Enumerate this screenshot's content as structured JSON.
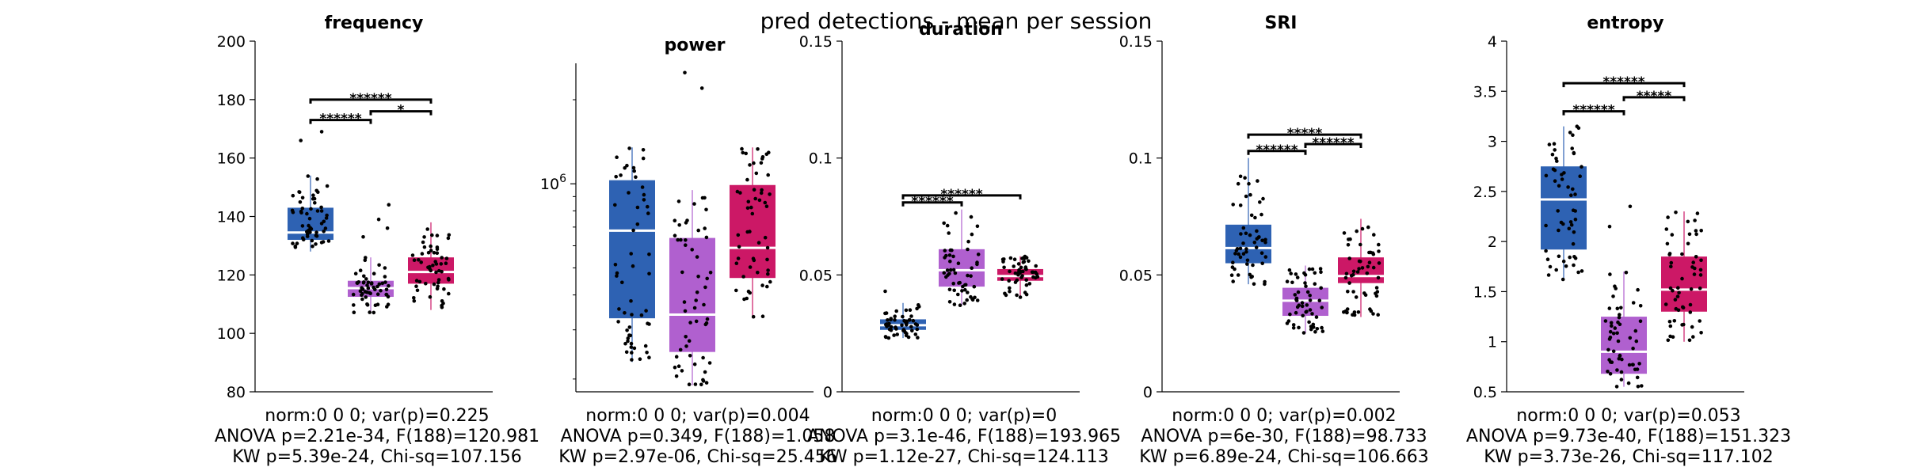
{
  "figure": {
    "title": "pred detections - mean per session",
    "colors": {
      "group1": "#2e62b3",
      "group2": "#b060cf",
      "group3": "#cc1866",
      "median": "#ffffff",
      "dot": "#000000"
    }
  },
  "chart_data": [
    {
      "type": "boxplot",
      "title": "frequency",
      "scale": "linear",
      "ylim": [
        80,
        200
      ],
      "yticks": [
        80,
        100,
        120,
        140,
        160,
        180,
        200
      ],
      "ytick_labels": [
        "80",
        "100",
        "120",
        "140",
        "160",
        "180",
        "200"
      ],
      "groups": [
        {
          "q1": 132,
          "median": 134.5,
          "q3": 143,
          "whisker_low": 128,
          "whisker_high": 154,
          "n": 55,
          "extra": [
            166,
            169
          ]
        },
        {
          "q1": 112.5,
          "median": 115.5,
          "q3": 118,
          "whisker_low": 107,
          "whisker_high": 126,
          "n": 55,
          "extra": [
            133,
            136,
            139,
            144
          ]
        },
        {
          "q1": 117,
          "median": 121,
          "q3": 126,
          "whisker_low": 108,
          "whisker_high": 138,
          "n": 55,
          "extra": []
        }
      ],
      "significance": [
        {
          "from": 0,
          "to": 1,
          "label": "******",
          "y": 173
        },
        {
          "from": 0,
          "to": 2,
          "label": "******",
          "y": 180
        },
        {
          "from": 1,
          "to": 2,
          "label": "*",
          "y": 176
        }
      ],
      "stats": [
        "norm:0  0  0; var(p)=0.225",
        "ANOVA p=2.21e-34, F(188)=120.981",
        "KW p=5.39e-24, Chi-sq=107.156"
      ]
    },
    {
      "type": "boxplot",
      "title": "power",
      "scale": "log",
      "ylim": [
        180000.0,
        2700000.0
      ],
      "yticks": [
        1000000
      ],
      "ytick_labels": [
        "10^6"
      ],
      "groups": [
        {
          "q1": 330000.0,
          "median": 680000.0,
          "q3": 1030000.0,
          "whisker_low": 230000.0,
          "whisker_high": 1350000.0,
          "n": 55,
          "extra": []
        },
        {
          "q1": 250000.0,
          "median": 340000.0,
          "q3": 640000.0,
          "whisker_low": 190000.0,
          "whisker_high": 950000.0,
          "n": 55,
          "extra": [
            2200000.0,
            2500000.0
          ]
        },
        {
          "q1": 460000.0,
          "median": 590000.0,
          "q3": 990000.0,
          "whisker_low": 330000.0,
          "whisker_high": 1350000.0,
          "n": 55,
          "extra": []
        }
      ],
      "significance": [],
      "stats": [
        "norm:0  0  0; var(p)=0.004",
        "ANOVA p=0.349, F(188)=1.058",
        "KW p=2.97e-06, Chi-sq=25.456"
      ]
    },
    {
      "type": "boxplot",
      "title": "duration",
      "scale": "linear",
      "ylim": [
        0,
        0.15
      ],
      "yticks": [
        0,
        0.05,
        0.1,
        0.15
      ],
      "ytick_labels": [
        "0",
        "0.05",
        "0.1",
        "0.15"
      ],
      "groups": [
        {
          "q1": 0.0265,
          "median": 0.0285,
          "q3": 0.031,
          "whisker_low": 0.023,
          "whisker_high": 0.038,
          "n": 55,
          "extra": [
            0.043
          ]
        },
        {
          "q1": 0.045,
          "median": 0.052,
          "q3": 0.061,
          "whisker_low": 0.037,
          "whisker_high": 0.078,
          "n": 55,
          "extra": []
        },
        {
          "q1": 0.0475,
          "median": 0.0495,
          "q3": 0.0525,
          "whisker_low": 0.04,
          "whisker_high": 0.058,
          "n": 55,
          "extra": []
        }
      ],
      "significance": [
        {
          "from": 0,
          "to": 1,
          "label": "******",
          "y": 0.081
        },
        {
          "from": 0,
          "to": 2,
          "label": "******",
          "y": 0.084
        }
      ],
      "stats": [
        "norm:0  0  0; var(p)=0",
        "ANOVA p=3.1e-46, F(188)=193.965",
        "KW p=1.12e-27, Chi-sq=124.113"
      ]
    },
    {
      "type": "boxplot",
      "title": "SRI",
      "scale": "linear",
      "ylim": [
        0,
        0.15
      ],
      "yticks": [
        0,
        0.05,
        0.1,
        0.15
      ],
      "ytick_labels": [
        "0",
        "0.05",
        "0.1",
        "0.15"
      ],
      "groups": [
        {
          "q1": 0.055,
          "median": 0.0615,
          "q3": 0.0715,
          "whisker_low": 0.046,
          "whisker_high": 0.1,
          "n": 55,
          "extra": []
        },
        {
          "q1": 0.0325,
          "median": 0.039,
          "q3": 0.0445,
          "whisker_low": 0.025,
          "whisker_high": 0.054,
          "n": 55,
          "extra": []
        },
        {
          "q1": 0.0465,
          "median": 0.0495,
          "q3": 0.0575,
          "whisker_low": 0.032,
          "whisker_high": 0.074,
          "n": 55,
          "extra": []
        }
      ],
      "significance": [
        {
          "from": 0,
          "to": 1,
          "label": "******",
          "y": 0.103
        },
        {
          "from": 0,
          "to": 2,
          "label": "*****",
          "y": 0.11
        },
        {
          "from": 1,
          "to": 2,
          "label": "******",
          "y": 0.106
        }
      ],
      "stats": [
        "norm:0  0  0; var(p)=0.002",
        "ANOVA p=6e-30, F(188)=98.733",
        "KW p=6.89e-24, Chi-sq=106.663"
      ]
    },
    {
      "type": "boxplot",
      "title": "entropy",
      "scale": "linear",
      "ylim": [
        0.5,
        4
      ],
      "yticks": [
        0.5,
        1,
        1.5,
        2,
        2.5,
        3,
        3.5,
        4
      ],
      "ytick_labels": [
        "0.5",
        "1",
        "1.5",
        "2",
        "2.5",
        "3",
        "3.5",
        "4"
      ],
      "groups": [
        {
          "q1": 1.92,
          "median": 2.42,
          "q3": 2.75,
          "whisker_low": 1.62,
          "whisker_high": 3.15,
          "n": 55,
          "extra": []
        },
        {
          "q1": 0.68,
          "median": 0.9,
          "q3": 1.25,
          "whisker_low": 0.55,
          "whisker_high": 1.7,
          "n": 55,
          "extra": [
            2.35,
            2.15
          ]
        },
        {
          "q1": 1.3,
          "median": 1.52,
          "q3": 1.85,
          "whisker_low": 1.0,
          "whisker_high": 2.3,
          "n": 55,
          "extra": []
        }
      ],
      "significance": [
        {
          "from": 0,
          "to": 1,
          "label": "******",
          "y": 3.3
        },
        {
          "from": 0,
          "to": 2,
          "label": "******",
          "y": 3.58
        },
        {
          "from": 1,
          "to": 2,
          "label": "*****",
          "y": 3.44
        }
      ],
      "stats": [
        "norm:0  0  0; var(p)=0.053",
        "ANOVA p=9.73e-40, F(188)=151.323",
        "KW p=3.73e-26, Chi-sq=117.102"
      ]
    }
  ]
}
